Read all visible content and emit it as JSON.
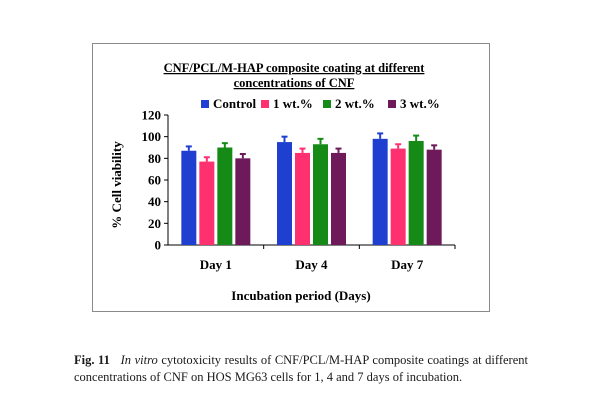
{
  "chart_data": {
    "type": "bar",
    "title_line1": "CNF/PCL/M-HAP composite coating at different",
    "title_line2": "concentrations of CNF",
    "xlabel": "Incubation period (Days)",
    "ylabel": "% Cell viability",
    "ylim": [
      0,
      120
    ],
    "yticks": [
      0,
      20,
      40,
      60,
      80,
      100,
      120
    ],
    "legend_position": "top",
    "grid": false,
    "categories": [
      "Day 1",
      "Day 4",
      "Day 7"
    ],
    "series": [
      {
        "name": "Control",
        "color": "#1f3fd1",
        "values": [
          87,
          95,
          98
        ],
        "errors": [
          4,
          5,
          5
        ]
      },
      {
        "name": "1 wt.%",
        "color": "#ff3070",
        "values": [
          77,
          85,
          89
        ],
        "errors": [
          4,
          4,
          4
        ]
      },
      {
        "name": "2 wt.%",
        "color": "#168a16",
        "values": [
          90,
          93,
          96
        ],
        "errors": [
          4,
          5,
          5
        ]
      },
      {
        "name": "3 wt.%",
        "color": "#6e1a5a",
        "values": [
          80,
          85,
          88
        ],
        "errors": [
          4,
          4,
          4
        ]
      }
    ]
  },
  "caption": {
    "label": "Fig. 11",
    "italic": "In vitro",
    "text": " cytotoxicity results of CNF/PCL/M-HAP composite coatings at different concentrations of CNF on HOS MG63 cells for 1, 4 and 7 days of incubation."
  }
}
